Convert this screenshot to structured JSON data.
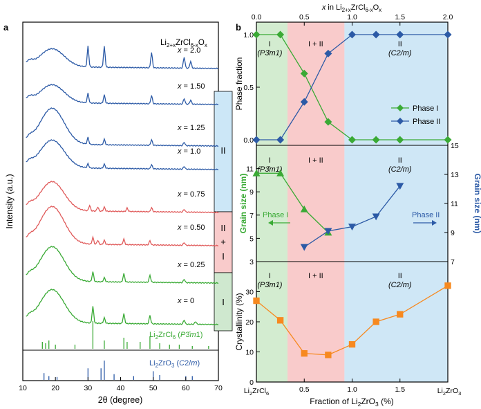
{
  "panel_a": {
    "panel_label": "a",
    "series_formula": "Li2+xZrCl6-xOx",
    "ylabel": "Intensity (a.u.)",
    "xlabel": "2θ (degree)",
    "x_ticks": [
      10,
      20,
      30,
      40,
      50,
      60,
      70
    ],
    "phase_bands": [
      {
        "label": "II",
        "color": "#cce7f7"
      },
      {
        "label": "II + I",
        "color": "#f9cbcb"
      },
      {
        "label": "I",
        "color": "#cfe8cf"
      }
    ],
    "ref1_label": "Li2ZrCl6 (P3̄m1)",
    "ref2_label": "Li2ZrO3 (C2/m)"
  },
  "panel_b": {
    "panel_label": "b",
    "top_axis_label": "x in Li2+xZrCl6-xOx",
    "top_ticks": [
      "0.0",
      "0.5",
      "1.0",
      "1.5",
      "2.0"
    ],
    "bottom_ticks": [
      "0.0",
      "0.5",
      "1.0",
      "1.5",
      "2.0"
    ],
    "bottom_end_left": "Li2ZrCl6",
    "bottom_end_right": "Li2ZrO3",
    "xlabel": "Fraction of Li2ZrO3 (%)",
    "region_labels": {
      "I": "I",
      "I_sub": "(P3̄m1)",
      "mix": "I + II",
      "II": "II",
      "II_sub": "(C2/m)"
    }
  },
  "chart_data": [
    {
      "type": "line",
      "title": "XRD patterns of Li2+xZrCl6-xOx",
      "xlabel": "2θ (degree)",
      "ylabel": "Intensity (a.u.)",
      "xlim": [
        10,
        70
      ],
      "series": [
        {
          "name": "x = 2.0",
          "color": "#2c5aa6",
          "offset": 8
        },
        {
          "name": "x = 1.50",
          "color": "#2c5aa6",
          "offset": 7
        },
        {
          "name": "x = 1.25",
          "color": "#2c5aa6",
          "offset": 6
        },
        {
          "name": "x = 1.0",
          "color": "#2c5aa6",
          "offset": 5
        },
        {
          "name": "x = 0.75",
          "color": "#e05a5a",
          "offset": 4
        },
        {
          "name": "x = 0.50",
          "color": "#e05a5a",
          "offset": 3
        },
        {
          "name": "x = 0.25",
          "color": "#3aaa35",
          "offset": 2
        },
        {
          "name": "x = 0",
          "color": "#3aaa35",
          "offset": 1
        }
      ],
      "reference_patterns": [
        {
          "name": "Li2ZrCl6 (P3̄m1)",
          "color": "#3aaa35",
          "peaks_2theta": [
            16,
            17,
            18,
            20,
            26,
            31.5,
            35,
            41,
            42,
            46,
            49,
            52,
            55,
            58,
            62,
            67
          ],
          "intensity": [
            0.25,
            0.2,
            0.3,
            0.15,
            0.15,
            1.0,
            0.3,
            0.4,
            0.25,
            0.25,
            0.45,
            0.2,
            0.15,
            0.15,
            0.1,
            0.1
          ]
        },
        {
          "name": "Li2ZrO3 (C2/m)",
          "color": "#2c5aa6",
          "peaks_2theta": [
            16.5,
            18,
            20.5,
            30,
            34,
            35,
            38,
            44,
            50,
            52,
            60,
            62
          ],
          "intensity": [
            0.35,
            0.2,
            0.15,
            0.6,
            0.6,
            1.0,
            0.3,
            0.2,
            0.45,
            0.25,
            0.2,
            0.2
          ]
        }
      ]
    },
    {
      "type": "line",
      "title": "Phase fraction",
      "ylabel": "Phase fraction",
      "xlabel": "x in Li2+xZrCl6-xOx",
      "xlim": [
        0,
        2.0
      ],
      "ylim": [
        0,
        1.0
      ],
      "yticks": [
        0,
        0.5,
        1.0
      ],
      "series": [
        {
          "name": "Phase I",
          "color": "#3aaa35",
          "marker": "diamond",
          "x": [
            0,
            0.25,
            0.5,
            0.75,
            1.0,
            1.25,
            1.5,
            2.0
          ],
          "y": [
            1.0,
            1.0,
            0.63,
            0.17,
            0,
            0,
            0,
            0
          ]
        },
        {
          "name": "Phase II",
          "color": "#2c5aa6",
          "marker": "diamond",
          "x": [
            0,
            0.25,
            0.5,
            0.75,
            1.0,
            1.25,
            1.5,
            2.0
          ],
          "y": [
            0,
            0,
            0.36,
            0.82,
            1.0,
            1.0,
            1.0,
            1.0
          ]
        }
      ]
    },
    {
      "type": "line",
      "title": "Grain size",
      "xlabel": "x in Li2+xZrCl6-xOx",
      "ylabel_left": "Grain size (nm)",
      "ylabel_right": "Grain size (nm)",
      "left_axis": {
        "ylim": [
          3,
          13
        ],
        "yticks": [
          3,
          5,
          7,
          9,
          11
        ]
      },
      "right_axis": {
        "ylim": [
          7,
          15
        ],
        "yticks": [
          7,
          9,
          11,
          13,
          15
        ]
      },
      "arrows": [
        {
          "text": "Phase I",
          "direction": "left"
        },
        {
          "text": "Phase II",
          "direction": "right"
        }
      ],
      "series": [
        {
          "name": "Phase I",
          "color": "#3aaa35",
          "marker": "triangle",
          "axis": "left",
          "x": [
            0,
            0.25,
            0.5,
            0.75
          ],
          "y": [
            10.6,
            10.6,
            7.5,
            5.5
          ]
        },
        {
          "name": "Phase II",
          "color": "#2c5aa6",
          "marker": "triangle-down",
          "axis": "right",
          "x": [
            0.5,
            0.75,
            1.0,
            1.25,
            1.5
          ],
          "y": [
            8.0,
            9.1,
            9.4,
            10.1,
            12.2
          ]
        }
      ]
    },
    {
      "type": "line",
      "title": "Crystallinity",
      "xlabel": "Fraction of Li2ZrO3 (%)",
      "ylabel": "Crystallinity (%)",
      "xlim": [
        0,
        2.0
      ],
      "ylim": [
        0,
        40
      ],
      "yticks": [
        0,
        10,
        20,
        30
      ],
      "series": [
        {
          "name": "Crystallinity",
          "color": "#f7891f",
          "marker": "square",
          "x": [
            0,
            0.25,
            0.5,
            0.75,
            1.0,
            1.25,
            1.5,
            2.0
          ],
          "y": [
            27,
            20.5,
            9.5,
            9,
            12.5,
            20,
            22.5,
            32
          ]
        }
      ]
    }
  ]
}
